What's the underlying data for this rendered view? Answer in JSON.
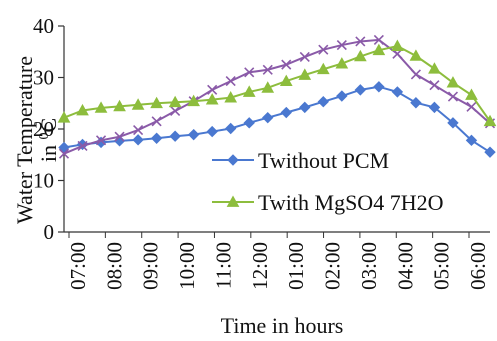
{
  "chart_data": {
    "type": "line",
    "xlabel": "Time in hours",
    "ylabel": "Water Temperature in 0C",
    "ylabel_line1": "Water Temperature",
    "ylabel_line2_prefix": "in ",
    "ylabel_superscript": "0",
    "ylabel_line2_suffix": "C",
    "ylim": [
      0,
      40
    ],
    "y_ticks": [
      "0",
      "10",
      "20",
      "30",
      "40"
    ],
    "categories": [
      "07:00",
      "08:00",
      "09:00",
      "10:00",
      "11:00",
      "12:00",
      "01:00",
      "02:00",
      "03:00",
      "04:00",
      "05:00",
      "06:00"
    ],
    "x_tick_labels": [
      "07:00",
      "08:00",
      "09:00",
      "10:00",
      "11:00",
      "12:00",
      "01:00",
      "02:00",
      "03:00",
      "04:00",
      "05:00",
      "06:00"
    ],
    "x": [
      0,
      0.5,
      1,
      1.5,
      2,
      2.5,
      3,
      3.5,
      4,
      4.5,
      5,
      5.5,
      6,
      6.5,
      7,
      7.5,
      8,
      8.5,
      9,
      9.5,
      10,
      10.5,
      11,
      11.5
    ],
    "series": [
      {
        "name": "Twithout PCM",
        "color": "#4a78d0",
        "marker": "diamond",
        "values": [
          16.4,
          17.0,
          17.4,
          17.7,
          17.9,
          18.2,
          18.6,
          18.9,
          19.5,
          20.1,
          21.2,
          22.2,
          23.2,
          24.2,
          25.3,
          26.4,
          27.6,
          28.2,
          27.2,
          25.1,
          24.2,
          21.2,
          17.8,
          15.5
        ]
      },
      {
        "name": "",
        "color": "#8a5aa8",
        "marker": "x",
        "values": [
          15.2,
          16.7,
          17.8,
          18.5,
          19.8,
          21.5,
          23.5,
          25.4,
          27.6,
          29.3,
          31.0,
          31.5,
          32.5,
          34.0,
          35.4,
          36.3,
          37.0,
          37.3,
          34.6,
          30.6,
          28.5,
          26.3,
          24.3,
          21.1
        ]
      },
      {
        "name": "Twith MgSO4 7H2O",
        "color": "#8dbd3d",
        "marker": "triangle",
        "values": [
          22.2,
          23.6,
          24.1,
          24.4,
          24.7,
          25.0,
          25.2,
          25.4,
          25.7,
          26.1,
          27.2,
          28.0,
          29.3,
          30.5,
          31.6,
          32.7,
          34.1,
          35.3,
          36.1,
          34.2,
          31.7,
          29.0,
          26.6,
          21.5
        ]
      }
    ],
    "legend": [
      "Twithout PCM",
      "Twith MgSO4 7H2O"
    ],
    "legend_position": "lower-right",
    "grid": false
  }
}
